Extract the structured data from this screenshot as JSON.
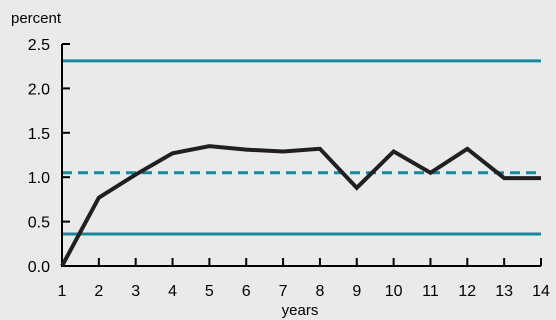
{
  "chart_data": {
    "type": "line",
    "ylabel": "percent",
    "xlabel": "years",
    "xlim": [
      1,
      14
    ],
    "ylim": [
      0,
      2.5
    ],
    "x_ticks": [
      1,
      2,
      3,
      4,
      5,
      6,
      7,
      8,
      9,
      10,
      11,
      12,
      13,
      14
    ],
    "y_ticks": [
      "0.0",
      "0.5",
      "1.0",
      "1.5",
      "2.0",
      "2.5"
    ],
    "grid": false,
    "series": [
      {
        "style": "solid-thick",
        "color": "#231f20",
        "x": [
          1,
          2,
          3,
          4,
          5,
          6,
          7,
          8,
          9,
          10,
          11,
          12,
          13,
          14
        ],
        "y": [
          0.0,
          0.77,
          1.03,
          1.27,
          1.35,
          1.31,
          1.29,
          1.32,
          0.88,
          1.29,
          1.05,
          1.32,
          0.99,
          0.99
        ]
      }
    ],
    "reference_lines": [
      {
        "orientation": "horizontal",
        "y": 2.31,
        "style": "solid",
        "color": "#1a8799"
      },
      {
        "orientation": "horizontal",
        "y": 1.05,
        "style": "dashed",
        "color": "#1a8799"
      },
      {
        "orientation": "horizontal",
        "y": 0.36,
        "style": "solid",
        "color": "#1a8799"
      }
    ]
  }
}
